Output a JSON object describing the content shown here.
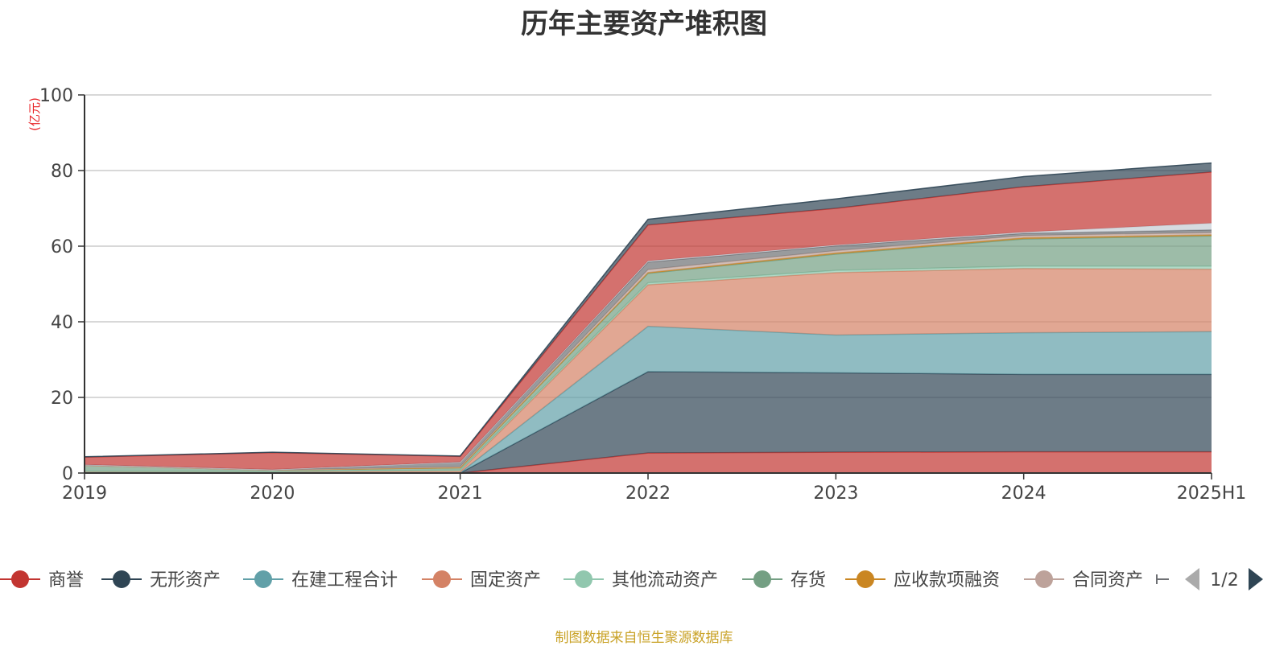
{
  "title": "历年主要资产堆积图",
  "source": "制图数据来自恒生聚源数据库",
  "chart_data": {
    "type": "area",
    "stacked": true,
    "x": [
      "2019",
      "2020",
      "2021",
      "2022",
      "2023",
      "2024",
      "2025H1"
    ],
    "ylabel": "(亿元)",
    "ylim": [
      0,
      100
    ],
    "yticks": [
      0,
      20,
      40,
      60,
      80,
      100
    ],
    "grid": true,
    "series": [
      {
        "name": "商誉",
        "color": "#c23531",
        "values": [
          0,
          0,
          0,
          5.3,
          5.5,
          5.6,
          5.6
        ]
      },
      {
        "name": "无形资产",
        "color": "#2f4554",
        "values": [
          0,
          0,
          0,
          21.5,
          21.0,
          20.5,
          20.5
        ]
      },
      {
        "name": "在建工程合计",
        "color": "#61a0a8",
        "values": [
          0,
          0,
          0.1,
          12.0,
          10.0,
          11.0,
          11.3
        ]
      },
      {
        "name": "固定资产",
        "color": "#d48265",
        "values": [
          0.3,
          0.3,
          0.4,
          11.0,
          16.5,
          17.0,
          16.5
        ]
      },
      {
        "name": "其他流动资产",
        "color": "#91c7ae",
        "values": [
          0.2,
          0.1,
          0.3,
          0.5,
          0.6,
          0.6,
          0.8
        ]
      },
      {
        "name": "存货",
        "color": "#749f83",
        "values": [
          1.5,
          0.4,
          0.6,
          2.5,
          4.3,
          7.2,
          8.0
        ]
      },
      {
        "name": "应收款项融资",
        "color": "#ca8622",
        "values": [
          0,
          0,
          0,
          0.2,
          0.3,
          0.3,
          0.3
        ]
      },
      {
        "name": "合同资产",
        "color": "#bda29a",
        "values": [
          0,
          0,
          0.3,
          0.8,
          0.6,
          0.6,
          0.6
        ]
      },
      {
        "name": "",
        "color": "#6e7074",
        "values": [
          0.2,
          0.1,
          1.2,
          2.0,
          1.3,
          0.6,
          0.7
        ]
      },
      {
        "name": "",
        "color": "#c4ccd3",
        "values": [
          0,
          0,
          0,
          0.3,
          0.2,
          0.3,
          1.8
        ]
      },
      {
        "name": "",
        "color": "#c23531",
        "values": [
          2.0,
          4.5,
          1.5,
          9.5,
          9.7,
          12.0,
          13.5
        ]
      },
      {
        "name": "",
        "color": "#2f4554",
        "values": [
          0.1,
          0.1,
          0.1,
          1.5,
          2.5,
          2.7,
          2.4
        ]
      }
    ]
  },
  "legend": {
    "items": [
      {
        "name": "商誉",
        "color": "#c23531"
      },
      {
        "name": "无形资产",
        "color": "#2f4554"
      },
      {
        "name": "在建工程合计",
        "color": "#61a0a8"
      },
      {
        "name": "固定资产",
        "color": "#d48265"
      },
      {
        "name": "其他流动资产",
        "color": "#91c7ae"
      },
      {
        "name": "存货",
        "color": "#749f83"
      },
      {
        "name": "应收款项融资",
        "color": "#ca8622"
      },
      {
        "name": "合同资产",
        "color": "#bda29a"
      }
    ],
    "page_label": "1/2"
  }
}
